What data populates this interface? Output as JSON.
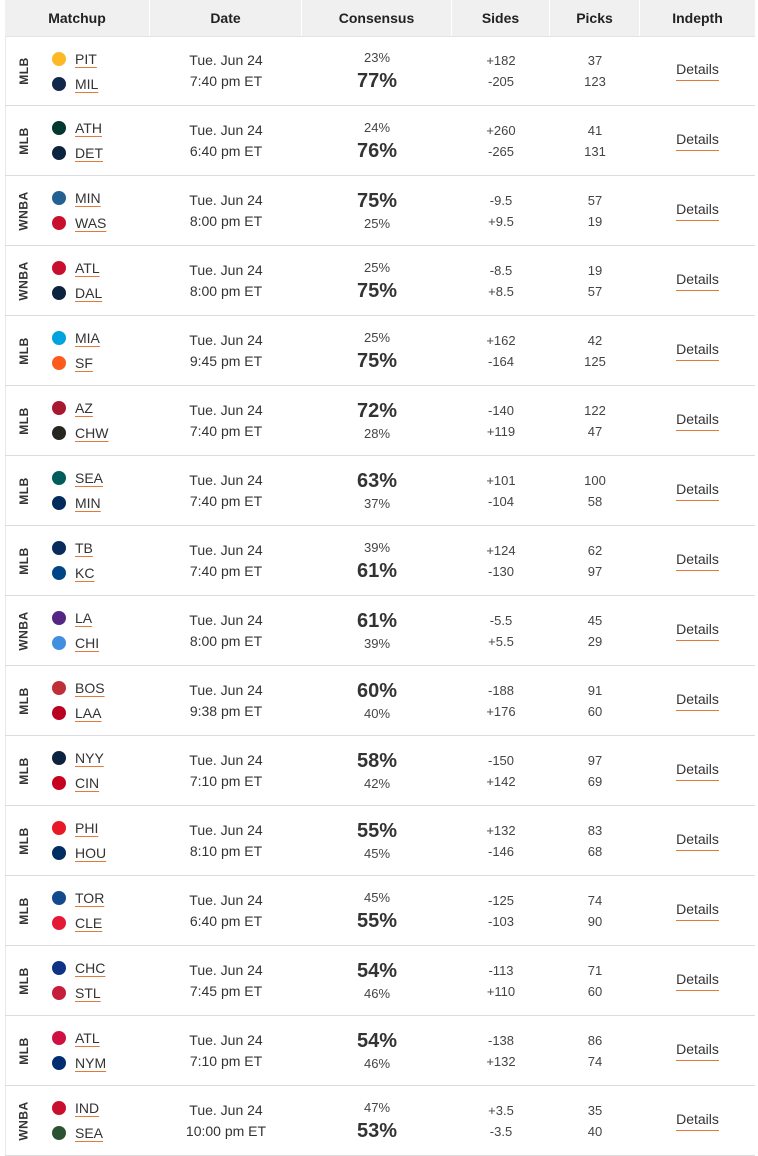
{
  "header": {
    "matchup": "Matchup",
    "date": "Date",
    "consensus": "Consensus",
    "sides": "Sides",
    "picks": "Picks",
    "indepth": "Indepth"
  },
  "details_label": "Details",
  "games": [
    {
      "league": "MLB",
      "day": "Tue. Jun 24",
      "time": "7:40 pm ET",
      "away": {
        "abbr": "PIT",
        "logo": "pirates-logo",
        "pct": "23%",
        "side": "+182",
        "picks": "37"
      },
      "home": {
        "abbr": "MIL",
        "logo": "brewers-logo",
        "pct": "77%",
        "side": "-205",
        "picks": "123"
      },
      "fav": "home"
    },
    {
      "league": "MLB",
      "day": "Tue. Jun 24",
      "time": "6:40 pm ET",
      "away": {
        "abbr": "ATH",
        "logo": "athletics-logo",
        "pct": "24%",
        "side": "+260",
        "picks": "41"
      },
      "home": {
        "abbr": "DET",
        "logo": "tigers-logo",
        "pct": "76%",
        "side": "-265",
        "picks": "131"
      },
      "fav": "home"
    },
    {
      "league": "WNBA",
      "day": "Tue. Jun 24",
      "time": "8:00 pm ET",
      "away": {
        "abbr": "MIN",
        "logo": "lynx-logo",
        "pct": "75%",
        "side": "-9.5",
        "picks": "57"
      },
      "home": {
        "abbr": "WAS",
        "logo": "mystics-logo",
        "pct": "25%",
        "side": "+9.5",
        "picks": "19"
      },
      "fav": "away"
    },
    {
      "league": "WNBA",
      "day": "Tue. Jun 24",
      "time": "8:00 pm ET",
      "away": {
        "abbr": "ATL",
        "logo": "dream-logo",
        "pct": "25%",
        "side": "-8.5",
        "picks": "19"
      },
      "home": {
        "abbr": "DAL",
        "logo": "wings-logo",
        "pct": "75%",
        "side": "+8.5",
        "picks": "57"
      },
      "fav": "home"
    },
    {
      "league": "MLB",
      "day": "Tue. Jun 24",
      "time": "9:45 pm ET",
      "away": {
        "abbr": "MIA",
        "logo": "marlins-logo",
        "pct": "25%",
        "side": "+162",
        "picks": "42"
      },
      "home": {
        "abbr": "SF",
        "logo": "giants-logo",
        "pct": "75%",
        "side": "-164",
        "picks": "125"
      },
      "fav": "home"
    },
    {
      "league": "MLB",
      "day": "Tue. Jun 24",
      "time": "7:40 pm ET",
      "away": {
        "abbr": "AZ",
        "logo": "diamondbacks-logo",
        "pct": "72%",
        "side": "-140",
        "picks": "122"
      },
      "home": {
        "abbr": "CHW",
        "logo": "white-sox-logo",
        "pct": "28%",
        "side": "+119",
        "picks": "47"
      },
      "fav": "away"
    },
    {
      "league": "MLB",
      "day": "Tue. Jun 24",
      "time": "7:40 pm ET",
      "away": {
        "abbr": "SEA",
        "logo": "mariners-logo",
        "pct": "63%",
        "side": "+101",
        "picks": "100"
      },
      "home": {
        "abbr": "MIN",
        "logo": "twins-logo",
        "pct": "37%",
        "side": "-104",
        "picks": "58"
      },
      "fav": "away"
    },
    {
      "league": "MLB",
      "day": "Tue. Jun 24",
      "time": "7:40 pm ET",
      "away": {
        "abbr": "TB",
        "logo": "rays-logo",
        "pct": "39%",
        "side": "+124",
        "picks": "62"
      },
      "home": {
        "abbr": "KC",
        "logo": "royals-logo",
        "pct": "61%",
        "side": "-130",
        "picks": "97"
      },
      "fav": "home"
    },
    {
      "league": "WNBA",
      "day": "Tue. Jun 24",
      "time": "8:00 pm ET",
      "away": {
        "abbr": "LA",
        "logo": "sparks-logo",
        "pct": "61%",
        "side": "-5.5",
        "picks": "45"
      },
      "home": {
        "abbr": "CHI",
        "logo": "sky-logo",
        "pct": "39%",
        "side": "+5.5",
        "picks": "29"
      },
      "fav": "away"
    },
    {
      "league": "MLB",
      "day": "Tue. Jun 24",
      "time": "9:38 pm ET",
      "away": {
        "abbr": "BOS",
        "logo": "red-sox-logo",
        "pct": "60%",
        "side": "-188",
        "picks": "91"
      },
      "home": {
        "abbr": "LAA",
        "logo": "angels-logo",
        "pct": "40%",
        "side": "+176",
        "picks": "60"
      },
      "fav": "away"
    },
    {
      "league": "MLB",
      "day": "Tue. Jun 24",
      "time": "7:10 pm ET",
      "away": {
        "abbr": "NYY",
        "logo": "yankees-logo",
        "pct": "58%",
        "side": "-150",
        "picks": "97"
      },
      "home": {
        "abbr": "CIN",
        "logo": "reds-logo",
        "pct": "42%",
        "side": "+142",
        "picks": "69"
      },
      "fav": "away"
    },
    {
      "league": "MLB",
      "day": "Tue. Jun 24",
      "time": "8:10 pm ET",
      "away": {
        "abbr": "PHI",
        "logo": "phillies-logo",
        "pct": "55%",
        "side": "+132",
        "picks": "83"
      },
      "home": {
        "abbr": "HOU",
        "logo": "astros-logo",
        "pct": "45%",
        "side": "-146",
        "picks": "68"
      },
      "fav": "away"
    },
    {
      "league": "MLB",
      "day": "Tue. Jun 24",
      "time": "6:40 pm ET",
      "away": {
        "abbr": "TOR",
        "logo": "blue-jays-logo",
        "pct": "45%",
        "side": "-125",
        "picks": "74"
      },
      "home": {
        "abbr": "CLE",
        "logo": "guardians-logo",
        "pct": "55%",
        "side": "-103",
        "picks": "90"
      },
      "fav": "home"
    },
    {
      "league": "MLB",
      "day": "Tue. Jun 24",
      "time": "7:45 pm ET",
      "away": {
        "abbr": "CHC",
        "logo": "cubs-logo",
        "pct": "54%",
        "side": "-113",
        "picks": "71"
      },
      "home": {
        "abbr": "STL",
        "logo": "cardinals-logo",
        "pct": "46%",
        "side": "+110",
        "picks": "60"
      },
      "fav": "away"
    },
    {
      "league": "MLB",
      "day": "Tue. Jun 24",
      "time": "7:10 pm ET",
      "away": {
        "abbr": "ATL",
        "logo": "braves-logo",
        "pct": "54%",
        "side": "-138",
        "picks": "86"
      },
      "home": {
        "abbr": "NYM",
        "logo": "mets-logo",
        "pct": "46%",
        "side": "+132",
        "picks": "74"
      },
      "fav": "away"
    },
    {
      "league": "WNBA",
      "day": "Tue. Jun 24",
      "time": "10:00 pm ET",
      "away": {
        "abbr": "IND",
        "logo": "fever-logo",
        "pct": "47%",
        "side": "+3.5",
        "picks": "35"
      },
      "home": {
        "abbr": "SEA",
        "logo": "storm-logo",
        "pct": "53%",
        "side": "-3.5",
        "picks": "40"
      },
      "fav": "home"
    }
  ],
  "logo_colors": {
    "pirates-logo": "#fdb827",
    "brewers-logo": "#12284b",
    "athletics-logo": "#003831",
    "tigers-logo": "#0c2340",
    "lynx-logo": "#236192",
    "mystics-logo": "#c8102e",
    "dream-logo": "#c8102e",
    "wings-logo": "#0c2340",
    "marlins-logo": "#00a3e0",
    "giants-logo": "#fd5a1e",
    "diamondbacks-logo": "#a71930",
    "white-sox-logo": "#27251f",
    "mariners-logo": "#005c5c",
    "twins-logo": "#002b5c",
    "rays-logo": "#092c5c",
    "royals-logo": "#004687",
    "sparks-logo": "#552583",
    "sky-logo": "#418fde",
    "red-sox-logo": "#bd3039",
    "angels-logo": "#ba0021",
    "yankees-logo": "#0c2340",
    "reds-logo": "#c6011f",
    "phillies-logo": "#e81828",
    "astros-logo": "#002d62",
    "blue-jays-logo": "#134a8e",
    "guardians-logo": "#e31937",
    "cubs-logo": "#0e3386",
    "cardinals-logo": "#c41e3a",
    "braves-logo": "#ce1141",
    "mets-logo": "#002d72",
    "fever-logo": "#c8102e",
    "storm-logo": "#2c5234"
  }
}
